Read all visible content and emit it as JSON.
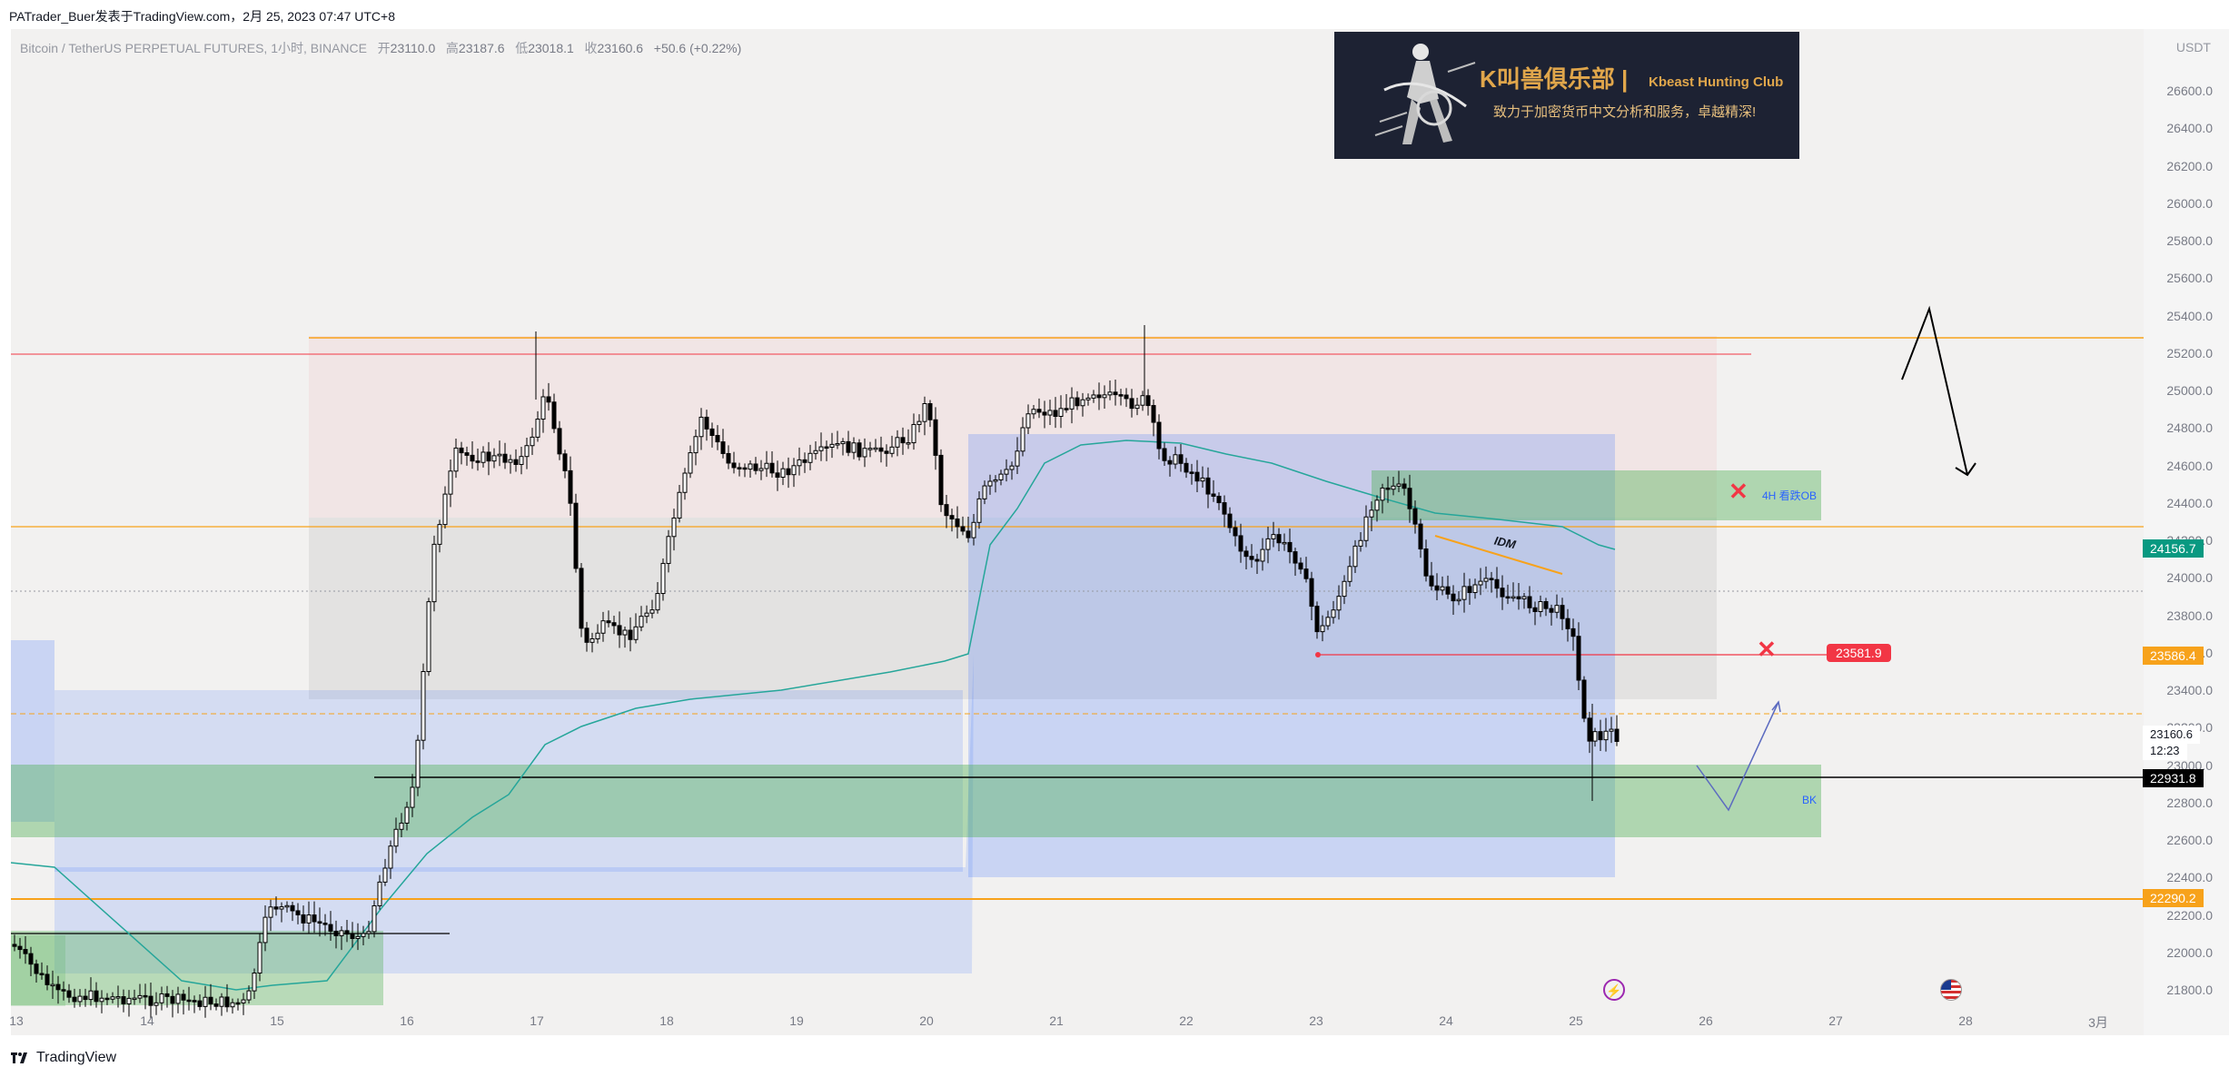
{
  "header": {
    "text": "PATrader_Buer发表于TradingView.com，2月 25, 2023 07:47 UTC+8"
  },
  "symbol_bar": {
    "name": "Bitcoin / TetherUS PERPETUAL FUTURES, 1小时, BINANCE",
    "open_label": "开",
    "open": "23110.0",
    "high_label": "高",
    "high": "23187.6",
    "low_label": "低",
    "low": "23018.1",
    "close_label": "收",
    "close": "23160.6",
    "change": "+50.6 (+0.22%)"
  },
  "logo": {
    "title": "K叫兽俱乐部",
    "separator": "|",
    "subtitle_en": "Kbeast Hunting Club",
    "subtitle_cn": "致力于加密货币中文分析和服务，卓越精深!"
  },
  "price_axis": {
    "unit": "USDT",
    "ticks": [
      "26600.0",
      "26400.0",
      "26200.0",
      "26000.0",
      "25800.0",
      "25600.0",
      "25400.0",
      "25200.0",
      "25000.0",
      "24800.0",
      "24600.0",
      "24400.0",
      "24200.0",
      "24000.0",
      "23800.0",
      "23600.0",
      "23400.0",
      "23200.0",
      "23000.0",
      "22800.0",
      "22600.0",
      "22400.0",
      "22200.0",
      "22000.0",
      "21800.0"
    ],
    "tags": {
      "teal": "24156.7",
      "orange_mid": "23586.4",
      "current": "23160.6",
      "countdown": "12:23",
      "black": "22931.8",
      "orange_low": "22290.2"
    }
  },
  "time_axis": {
    "ticks": [
      "13",
      "14",
      "15",
      "16",
      "17",
      "18",
      "19",
      "20",
      "21",
      "22",
      "23",
      "24",
      "25",
      "26",
      "27",
      "28",
      "3月"
    ]
  },
  "annotations": {
    "ob_label": "4H 看跌OB",
    "bk_label": "BK",
    "idm_label": "IDM",
    "level_tag": "23581.9",
    "x_mark": "✕"
  },
  "icons": {
    "event": "lightning-icon",
    "flag": "us-flag-icon"
  },
  "colors": {
    "orange_level": "#f7a21b",
    "red_level": "#f23645",
    "teal_tag": "#089981",
    "vwap": "#26a69a",
    "green_zone": "#4caf50",
    "blue_zone": "#2962ff",
    "red_zone": "#f23645"
  },
  "brand": {
    "name": "TradingView"
  }
}
